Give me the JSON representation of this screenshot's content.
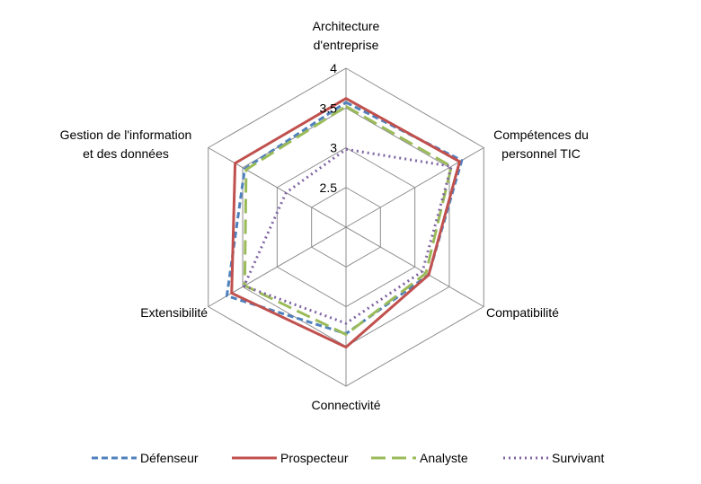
{
  "chart_data": {
    "type": "radar",
    "categories": [
      "Architecture d'entreprise",
      "Compétences du personnel TIC",
      "Compatibilité",
      "Connectivité",
      "Extensibilité",
      "Gestion de l'information et des données"
    ],
    "category_lines": [
      [
        "Architecture",
        "d'entreprise"
      ],
      [
        "Compétences du",
        "personnel TIC"
      ],
      [
        "Compatibilité"
      ],
      [
        "Connectivité"
      ],
      [
        "Extensibilité"
      ],
      [
        "Gestion de l'information",
        "et des données"
      ]
    ],
    "rlim": [
      2,
      4
    ],
    "ticks": [
      2,
      2.5,
      3,
      3.5,
      4
    ],
    "tick_labels": [
      "",
      "2.5",
      "3",
      "3.5",
      "4"
    ],
    "grid": true,
    "legend_position": "bottom",
    "series": [
      {
        "name": "Défenseur",
        "values": [
          3.57,
          3.68,
          3.2,
          3.34,
          3.73,
          3.47
        ],
        "color": "#4F81BD",
        "dash": "7,4"
      },
      {
        "name": "Prospecteur",
        "values": [
          3.62,
          3.65,
          3.2,
          3.51,
          3.66,
          3.61
        ],
        "color": "#C0504D",
        "dash": ""
      },
      {
        "name": "Analyste",
        "values": [
          3.52,
          3.53,
          3.16,
          3.35,
          3.47,
          3.45
        ],
        "color": "#9BBB59",
        "dash": "16,7"
      },
      {
        "name": "Survivant",
        "values": [
          2.98,
          3.53,
          3.11,
          3.21,
          3.48,
          2.87
        ],
        "color": "#8064A2",
        "dash": "2,4"
      }
    ]
  }
}
